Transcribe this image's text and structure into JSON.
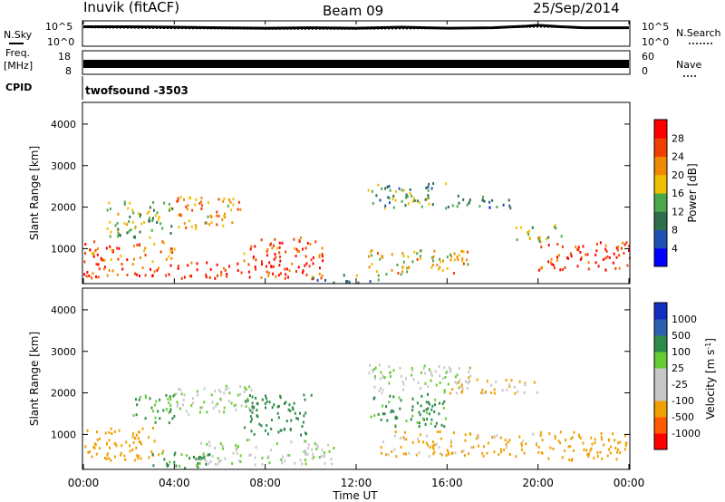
{
  "header": {
    "station": "Inuvik (fitACF)",
    "beam": "Beam 09",
    "date": "25/Sep/2014"
  },
  "left_labels": {
    "nsky": "N.Sky",
    "freq_line1": "Freq.",
    "freq_line2": "[MHz]",
    "cpid": "CPID"
  },
  "right_labels": {
    "nsearch": "N.Search",
    "nave": "Nave"
  },
  "noise_panel": {
    "left_ticks": [
      "10^5",
      "10^0"
    ],
    "right_ticks": [
      "10^5",
      "10^0"
    ]
  },
  "freq_panel": {
    "left_ticks": [
      "18",
      "8"
    ],
    "right_ticks": [
      "60",
      "0"
    ]
  },
  "cpid_text": "twofsound -3503",
  "xaxis": {
    "label": "Time UT",
    "ticks": [
      "00:00",
      "04:00",
      "08:00",
      "12:00",
      "16:00",
      "20:00",
      "00:00"
    ]
  },
  "power_panel": {
    "ylabel": "Slant Range [km]",
    "yticks": [
      "4000",
      "3000",
      "2000",
      "1000"
    ],
    "colorbar_label": "Power [dB]",
    "colorbar_ticks": [
      "28",
      "24",
      "20",
      "16",
      "12",
      "8",
      "4"
    ]
  },
  "velocity_panel": {
    "ylabel": "Slant Range [km]",
    "yticks": [
      "4000",
      "3000",
      "2000",
      "1000"
    ],
    "colorbar_label": "Velocity [m s",
    "colorbar_label_sup": "-1",
    "colorbar_label_end": "]",
    "colorbar_ticks": [
      "1000",
      "500",
      "100",
      "25",
      "-25",
      "-100",
      "-500",
      "-1000"
    ]
  },
  "colors": {
    "power_scale": [
      "#0000ff",
      "#1f4fb0",
      "#2e6e4a",
      "#4aa84a",
      "#f0c000",
      "#f08a00",
      "#f04000",
      "#ff0000"
    ],
    "velocity_scale": [
      "#ff0000",
      "#ff5a00",
      "#f0a000",
      "#c8c8c8",
      "#c8c8c8",
      "#66cc33",
      "#2e8a4a",
      "#2b5fb0",
      "#1030c0"
    ]
  },
  "chart_data": [
    {
      "type": "line",
      "title": "",
      "series": [
        {
          "name": "N.Sky",
          "note": "",
          "x": [
            0,
            2,
            4,
            6,
            8,
            10,
            12,
            14,
            16,
            18,
            19.5,
            20,
            21,
            22,
            24
          ],
          "y": [
            3.8,
            3.8,
            3.7,
            3.6,
            3.5,
            3.6,
            3.5,
            3.7,
            3.5,
            3.6,
            3.9,
            4.1,
            3.8,
            3.6,
            3.6
          ]
        },
        {
          "name": "N.Search",
          "x": [
            0,
            4,
            8,
            12,
            16,
            20,
            24
          ],
          "y": [
            3.6,
            3.4,
            3.3,
            3.3,
            3.4,
            3.7,
            3.5
          ]
        }
      ],
      "ylim_log10": [
        0,
        5
      ]
    },
    {
      "type": "line",
      "series": [
        {
          "name": "Freq",
          "x": [
            0,
            24
          ],
          "y": [
            10.5,
            10.5
          ],
          "ylim": [
            8,
            18
          ]
        }
      ]
    },
    {
      "type": "heatmap",
      "ylabel": "Slant Range [km]",
      "xlabel": "Time UT",
      "xlim_hours": [
        0,
        24
      ],
      "ylim_km": [
        180,
        4500
      ],
      "color_var": "Power [dB]",
      "clim": [
        0,
        30
      ],
      "regions": [
        {
          "x": [
            0,
            10.5
          ],
          "y": [
            300,
            700
          ],
          "value": 26
        },
        {
          "x": [
            0,
            4
          ],
          "y": [
            700,
            1200
          ],
          "value": 22
        },
        {
          "x": [
            1,
            4
          ],
          "y": [
            1300,
            2200
          ],
          "value": 14
        },
        {
          "x": [
            4,
            7
          ],
          "y": [
            1500,
            2300
          ],
          "value": 20
        },
        {
          "x": [
            7,
            10.5
          ],
          "y": [
            700,
            1300
          ],
          "value": 24
        },
        {
          "x": [
            10,
            13
          ],
          "y": [
            200,
            400
          ],
          "value": 10
        },
        {
          "x": [
            12.5,
            16
          ],
          "y": [
            2000,
            2600
          ],
          "value": 12
        },
        {
          "x": [
            12.5,
            17
          ],
          "y": [
            400,
            1000
          ],
          "value": 18
        },
        {
          "x": [
            16,
            19
          ],
          "y": [
            2000,
            2300
          ],
          "value": 8
        },
        {
          "x": [
            20,
            24
          ],
          "y": [
            500,
            1200
          ],
          "value": 26
        },
        {
          "x": [
            19,
            21
          ],
          "y": [
            1200,
            1600
          ],
          "value": 14
        }
      ]
    },
    {
      "type": "heatmap",
      "ylabel": "Slant Range [km]",
      "xlabel": "Time UT",
      "xlim_hours": [
        0,
        24
      ],
      "ylim_km": [
        180,
        4500
      ],
      "color_var": "Velocity [m s-1]",
      "clim": [
        -1000,
        1000
      ],
      "regions": [
        {
          "x": [
            0,
            3.5
          ],
          "y": [
            400,
            1200
          ],
          "value": -300
        },
        {
          "x": [
            2,
            4
          ],
          "y": [
            1300,
            2000
          ],
          "value": 150
        },
        {
          "x": [
            4,
            7.5
          ],
          "y": [
            1500,
            2200
          ],
          "value": 0
        },
        {
          "x": [
            5,
            11
          ],
          "y": [
            300,
            900
          ],
          "value": 0
        },
        {
          "x": [
            7,
            10
          ],
          "y": [
            1000,
            2000
          ],
          "value": 200
        },
        {
          "x": [
            3,
            6
          ],
          "y": [
            200,
            600
          ],
          "value": 150
        },
        {
          "x": [
            12.5,
            17
          ],
          "y": [
            2000,
            2700
          ],
          "value": 0
        },
        {
          "x": [
            12.5,
            16
          ],
          "y": [
            1200,
            2000
          ],
          "value": 150
        },
        {
          "x": [
            13,
            20
          ],
          "y": [
            500,
            1100
          ],
          "value": -150
        },
        {
          "x": [
            16,
            20
          ],
          "y": [
            2000,
            2400
          ],
          "value": -100
        },
        {
          "x": [
            20,
            24
          ],
          "y": [
            400,
            1100
          ],
          "value": -250
        }
      ]
    }
  ]
}
